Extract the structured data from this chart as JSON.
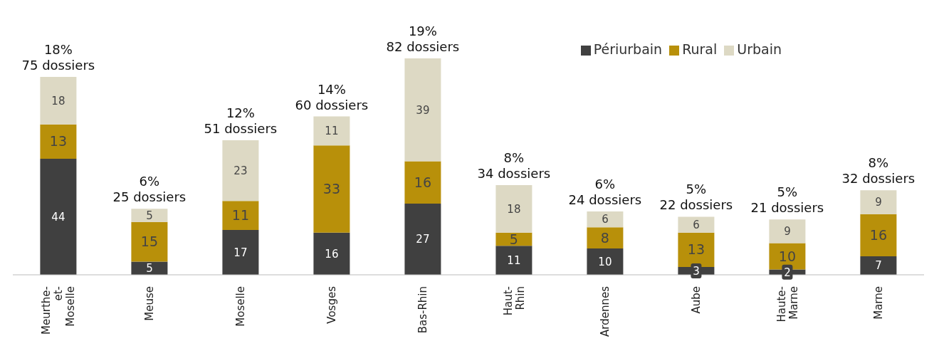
{
  "chart_data": {
    "type": "bar",
    "stacked": true,
    "data_labels": true,
    "legend": "top right",
    "categories": [
      "Meurthe-et-Moselle",
      "Meuse",
      "Moselle",
      "Vosges",
      "Bas-Rhin",
      "Haut-Rhin",
      "Ardennes",
      "Aube",
      "Haute-Marne",
      "Marne"
    ],
    "series": [
      {
        "name": "Périurbain",
        "color": "#404040",
        "values": [
          44,
          5,
          17,
          16,
          27,
          11,
          10,
          3,
          2,
          7
        ]
      },
      {
        "name": "Rural",
        "color": "#b8900a",
        "values": [
          13,
          15,
          11,
          33,
          16,
          5,
          8,
          13,
          10,
          16
        ]
      },
      {
        "name": "Urbain",
        "color": "#ddd9c4",
        "values": [
          18,
          5,
          23,
          11,
          39,
          18,
          6,
          6,
          9,
          9
        ]
      }
    ],
    "totals": [
      "18%\n75 dossiers",
      "6%\n25 dossiers",
      "12%\n51 dossiers",
      "14%\n60 dossiers",
      "19%\n82 dossiers",
      "8%\n34 dossiers",
      "6%\n24 dossiers",
      "5%\n22 dossiers",
      "5%\n21 dossiers",
      "8%\n32 dossiers"
    ]
  }
}
